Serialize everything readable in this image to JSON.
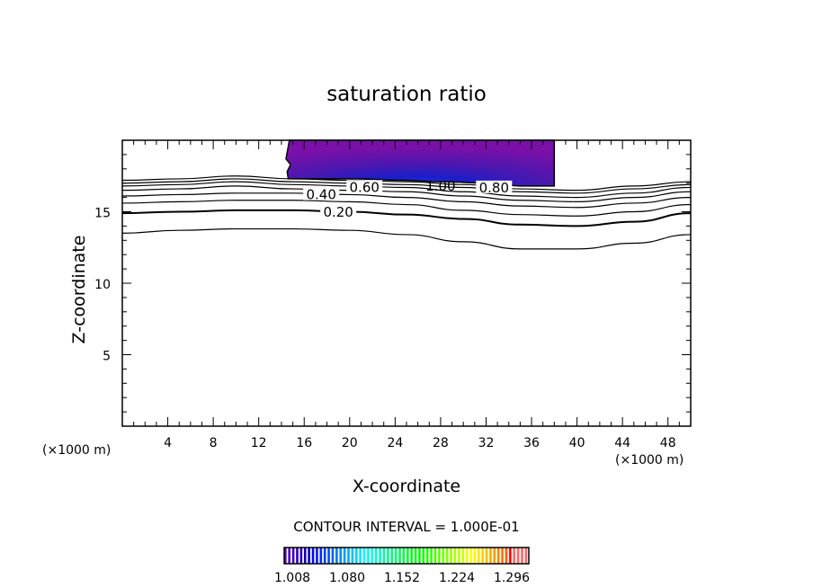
{
  "chart_data": {
    "type": "contour",
    "title": "saturation ratio",
    "xlabel": "X-coordinate",
    "ylabel": "Z-coordinate",
    "x_unit_left": "(×1000 m)",
    "x_unit_right": "(×1000 m)",
    "xlim": [
      0,
      50
    ],
    "ylim": [
      0,
      20
    ],
    "xticks": [
      4,
      8,
      12,
      16,
      20,
      24,
      28,
      32,
      36,
      40,
      44,
      48
    ],
    "yticks": [
      5,
      10,
      15
    ],
    "contour_interval_text": "CONTOUR INTERVAL = 1.000E-01",
    "contour_x": [
      0,
      5,
      10,
      15,
      20,
      25,
      30,
      35,
      40,
      45,
      50
    ],
    "contours": [
      {
        "level": 0.1,
        "z": [
          13.5,
          13.7,
          13.8,
          13.8,
          13.7,
          13.4,
          12.9,
          12.4,
          12.4,
          12.8,
          13.4
        ]
      },
      {
        "level": 0.2,
        "label": "0.20",
        "label_x": 19,
        "z": [
          14.9,
          15.0,
          15.1,
          15.1,
          15.0,
          14.8,
          14.5,
          14.1,
          14.0,
          14.3,
          14.9
        ]
      },
      {
        "level": 0.3,
        "z": [
          15.6,
          15.7,
          15.8,
          15.8,
          15.7,
          15.5,
          15.1,
          14.8,
          14.7,
          15.0,
          15.5
        ]
      },
      {
        "level": 0.4,
        "label": "0.40",
        "label_x": 17.5,
        "z": [
          16.1,
          16.2,
          16.3,
          16.3,
          16.2,
          16.0,
          15.7,
          15.4,
          15.3,
          15.6,
          16.0
        ]
      },
      {
        "level": 0.5,
        "z": [
          16.5,
          16.6,
          16.8,
          16.6,
          16.5,
          16.4,
          16.1,
          15.8,
          15.7,
          16.0,
          16.4
        ]
      },
      {
        "level": 0.6,
        "label": "0.60",
        "label_x": 17.5,
        "z": [
          16.8,
          16.9,
          17.1,
          16.9,
          16.8,
          16.7,
          16.4,
          16.1,
          16.0,
          16.3,
          16.7
        ]
      },
      {
        "level": 0.7,
        "z": [
          17.0,
          17.1,
          17.3,
          17.1,
          17.0,
          16.9,
          16.7,
          16.4,
          16.3,
          16.6,
          16.9
        ]
      },
      {
        "level": 0.8,
        "label": "0.80",
        "label_x": 17.5,
        "z": [
          17.2,
          17.3,
          17.5,
          17.3,
          17.2,
          17.1,
          16.9,
          16.6,
          16.5,
          16.8,
          17.1
        ]
      }
    ],
    "region_label": "1.00",
    "region_label_x": 28,
    "region": {
      "x": [
        14.5,
        38
      ],
      "bottom_x": [
        14.6,
        20,
        25,
        28,
        32,
        35,
        38
      ],
      "bottom_z": [
        17.3,
        17.3,
        17.2,
        17.1,
        17.0,
        16.8,
        16.8
      ],
      "top_z": 20
    },
    "colorbar": {
      "min": 1.008,
      "max": 1.3,
      "steps": 62,
      "labels": [
        "1.008",
        "1.080",
        "1.152",
        "1.224",
        "1.296"
      ]
    }
  }
}
